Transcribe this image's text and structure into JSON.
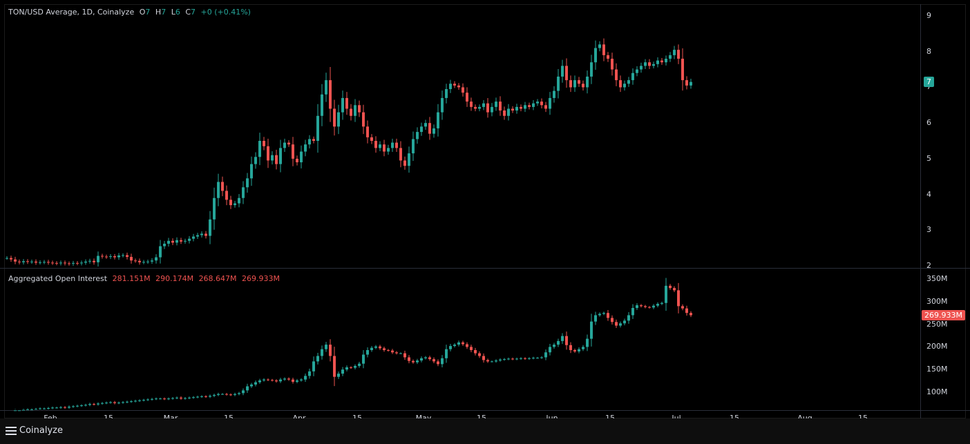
{
  "header": {
    "symbol": "TON/USD Average, 1D, Coinalyze",
    "o_label": "O",
    "o_value": "7",
    "h_label": "H",
    "h_value": "7",
    "l_label": "L",
    "l_value": "6",
    "c_label": "C",
    "c_value": "7",
    "change": "+0 (+0.41%)"
  },
  "oi_header": {
    "title": "Aggregated Open Interest",
    "v1": "281.151M",
    "v2": "290.174M",
    "v3": "268.647M",
    "v4": "269.933M"
  },
  "price_badge": "7",
  "oi_badge": "269.933M",
  "footer": {
    "brand": "Coinalyze"
  },
  "colors": {
    "up": "#26a69a",
    "down": "#ef5350",
    "background": "#000000",
    "badge_up": "#26a69a",
    "badge_down": "#ef5350"
  },
  "chart_data": [
    {
      "type": "candlestick",
      "title": "TON/USD Average, 1D, Coinalyze",
      "ylim": [
        2,
        9.3
      ],
      "y_ticks": [
        "2",
        "3",
        "4",
        "5",
        "6",
        "7",
        "8",
        "9"
      ],
      "x_ticks": [
        "Feb",
        "15",
        "Mar",
        "15",
        "Apr",
        "15",
        "May",
        "15",
        "Jun",
        "15",
        "Jul",
        "15",
        "Aug",
        "15"
      ],
      "close_series": [
        2.22,
        2.18,
        2.12,
        2.1,
        2.13,
        2.11,
        2.12,
        2.09,
        2.1,
        2.11,
        2.09,
        2.08,
        2.07,
        2.09,
        2.07,
        2.06,
        2.08,
        2.07,
        2.09,
        2.12,
        2.14,
        2.1,
        2.28,
        2.26,
        2.25,
        2.27,
        2.24,
        2.29,
        2.3,
        2.25,
        2.15,
        2.14,
        2.1,
        2.11,
        2.12,
        2.15,
        2.24,
        2.55,
        2.62,
        2.7,
        2.65,
        2.72,
        2.68,
        2.7,
        2.76,
        2.82,
        2.86,
        2.9,
        2.84,
        3.3,
        3.9,
        4.35,
        4.1,
        3.85,
        3.7,
        3.75,
        3.9,
        4.2,
        4.45,
        4.85,
        5.05,
        5.5,
        5.35,
        4.95,
        5.1,
        4.85,
        5.3,
        5.45,
        5.4,
        5.0,
        4.9,
        5.2,
        5.4,
        5.55,
        5.5,
        6.2,
        6.8,
        7.2,
        6.4,
        5.9,
        6.3,
        6.7,
        6.4,
        6.2,
        6.5,
        6.3,
        5.9,
        5.6,
        5.5,
        5.3,
        5.4,
        5.2,
        5.3,
        5.45,
        5.3,
        4.95,
        4.8,
        5.15,
        5.55,
        5.75,
        5.9,
        6.0,
        5.7,
        5.85,
        6.3,
        6.7,
        6.95,
        7.1,
        7.05,
        7.0,
        6.85,
        6.6,
        6.45,
        6.4,
        6.45,
        6.55,
        6.3,
        6.45,
        6.6,
        6.35,
        6.2,
        6.4,
        6.35,
        6.45,
        6.4,
        6.5,
        6.45,
        6.55,
        6.6,
        6.5,
        6.4,
        6.7,
        6.9,
        7.3,
        7.6,
        7.2,
        7.0,
        7.2,
        7.1,
        7.0,
        7.3,
        7.7,
        8.1,
        8.2,
        7.9,
        7.8,
        7.5,
        7.2,
        7.0,
        7.1,
        7.2,
        7.4,
        7.5,
        7.6,
        7.7,
        7.6,
        7.65,
        7.75,
        7.7,
        7.8,
        7.9,
        8.05,
        7.8,
        7.2,
        7.05,
        7.15
      ]
    },
    {
      "type": "candlestick",
      "title": "Aggregated Open Interest",
      "ylim": [
        60,
        365
      ],
      "y_ticks": [
        "100M",
        "150M",
        "200M",
        "250M",
        "300M",
        "350M"
      ],
      "close_series": [
        56,
        58,
        60,
        60,
        61,
        62,
        62,
        63,
        64,
        64,
        65,
        66,
        66,
        67,
        66,
        68,
        69,
        70,
        71,
        72,
        74,
        73,
        75,
        76,
        77,
        78,
        76,
        77,
        78,
        79,
        80,
        81,
        82,
        83,
        84,
        85,
        86,
        86,
        85,
        86,
        87,
        88,
        86,
        87,
        88,
        89,
        90,
        91,
        90,
        92,
        94,
        96,
        96,
        95,
        94,
        96,
        98,
        104,
        113,
        117,
        122,
        126,
        128,
        127,
        126,
        124,
        128,
        130,
        128,
        123,
        126,
        128,
        136,
        146,
        168,
        180,
        195,
        205,
        180,
        134,
        141,
        150,
        155,
        154,
        158,
        163,
        183,
        193,
        198,
        201,
        197,
        193,
        192,
        188,
        186,
        186,
        177,
        169,
        166,
        170,
        175,
        177,
        173,
        168,
        162,
        175,
        195,
        202,
        205,
        210,
        206,
        200,
        193,
        186,
        180,
        171,
        168,
        168,
        170,
        172,
        173,
        174,
        173,
        174,
        175,
        174,
        175,
        176,
        176,
        177,
        188,
        200,
        205,
        213,
        224,
        204,
        193,
        190,
        195,
        200,
        218,
        256,
        270,
        273,
        275,
        264,
        255,
        247,
        252,
        258,
        270,
        286,
        292,
        290,
        288,
        287,
        291,
        295,
        297,
        335,
        330,
        325,
        290,
        285,
        275,
        270
      ]
    }
  ]
}
